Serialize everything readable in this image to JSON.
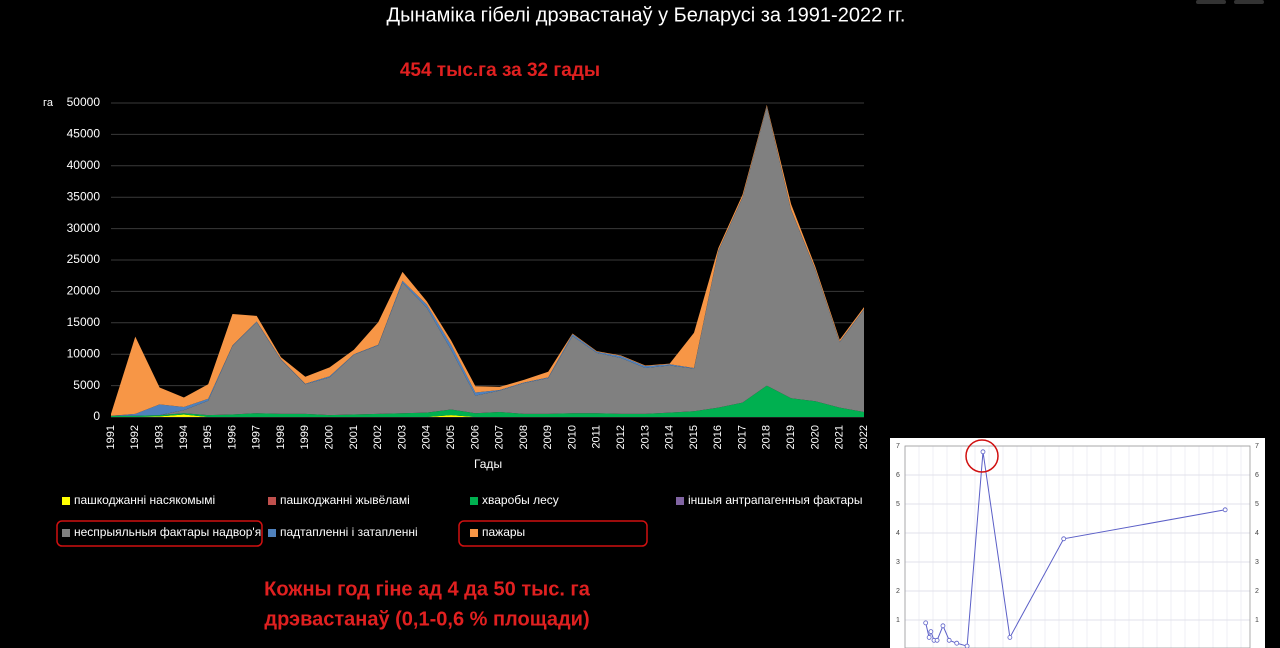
{
  "chart_data": [
    {
      "type": "stacked-area",
      "title": "Дынаміка гібелі дрэвастанаў у Беларусі за 1991-2022 гг.",
      "annotation_top": "454 тыс.га за 32 гады",
      "annotation_bottom": [
        "Кожны год гіне ад 4 да 50 тыс. га",
        "дрэвастанаў (0,1-0,6 % площади)"
      ],
      "y_label": "га",
      "x_label": "Гады",
      "categories": [
        "1991",
        "1992",
        "1993",
        "1994",
        "1995",
        "1996",
        "1997",
        "1998",
        "1999",
        "2000",
        "2001",
        "2002",
        "2003",
        "2004",
        "2005",
        "2006",
        "2007",
        "2008",
        "2009",
        "2010",
        "2011",
        "2012",
        "2013",
        "2014",
        "2015",
        "2016",
        "2017",
        "2018",
        "2019",
        "2020",
        "2021",
        "2022"
      ],
      "ylim": [
        0,
        50000
      ],
      "yticks": [
        0,
        5000,
        10000,
        15000,
        20000,
        25000,
        30000,
        35000,
        40000,
        45000,
        50000
      ],
      "grid": true,
      "series": [
        {
          "name": "пашкоджанні насякомымі",
          "color": "#ffff00",
          "values": [
            0,
            0,
            100,
            400,
            0,
            0,
            0,
            0,
            0,
            0,
            0,
            0,
            0,
            0,
            300,
            0,
            0,
            0,
            0,
            0,
            0,
            0,
            0,
            0,
            0,
            0,
            0,
            0,
            0,
            0,
            0,
            0
          ]
        },
        {
          "name": "пашкоджанні жывёламі",
          "color": "#c0504d",
          "values": [
            0,
            0,
            0,
            0,
            0,
            0,
            0,
            0,
            0,
            0,
            0,
            0,
            0,
            0,
            0,
            0,
            0,
            0,
            0,
            0,
            0,
            0,
            0,
            0,
            0,
            0,
            0,
            0,
            0,
            0,
            0,
            0
          ]
        },
        {
          "name": "хваробы лесу",
          "color": "#00b050",
          "values": [
            200,
            200,
            200,
            200,
            300,
            400,
            600,
            500,
            500,
            300,
            400,
            500,
            600,
            700,
            900,
            600,
            800,
            500,
            500,
            600,
            600,
            500,
            500,
            700,
            900,
            1500,
            2300,
            5000,
            3000,
            2500,
            1500,
            800
          ]
        },
        {
          "name": "іншыя антрапагенныя фактары",
          "color": "#8064a2",
          "values": [
            0,
            0,
            0,
            0,
            0,
            0,
            0,
            0,
            0,
            0,
            0,
            0,
            0,
            0,
            0,
            0,
            0,
            0,
            0,
            0,
            0,
            0,
            0,
            0,
            0,
            0,
            0,
            0,
            0,
            0,
            0,
            0
          ]
        },
        {
          "name": "неспрыяльныя фактары надвор'я",
          "color": "#808080",
          "values": [
            0,
            0,
            0,
            500,
            2300,
            10900,
            14500,
            8600,
            4700,
            6000,
            9500,
            10900,
            20800,
            16700,
            9500,
            2800,
            3400,
            4900,
            5700,
            12300,
            9600,
            8900,
            7300,
            7500,
            6800,
            24900,
            32600,
            44400,
            29900,
            20900,
            10400,
            16300
          ]
        },
        {
          "name": "падтапленні і затапленні",
          "color": "#4f81bd",
          "values": [
            0,
            300,
            1700,
            500,
            300,
            100,
            100,
            100,
            100,
            200,
            100,
            100,
            300,
            500,
            800,
            500,
            100,
            100,
            100,
            300,
            200,
            300,
            300,
            200,
            100,
            100,
            100,
            100,
            100,
            100,
            100,
            100
          ]
        },
        {
          "name": "пажары",
          "color": "#f79646",
          "values": [
            300,
            12300,
            2700,
            1500,
            2300,
            5000,
            900,
            300,
            1100,
            1400,
            700,
            3600,
            1400,
            500,
            700,
            1000,
            500,
            400,
            900,
            100,
            100,
            100,
            100,
            100,
            5600,
            400,
            400,
            200,
            900,
            400,
            300,
            300
          ]
        }
      ]
    },
    {
      "type": "line",
      "color": "#5b5fc7",
      "x": [
        6,
        7,
        7.5,
        8.4,
        9.3,
        11,
        12.8,
        15,
        18,
        22.6,
        30.4,
        46,
        92.8
      ],
      "values": [
        0.9,
        0.4,
        0.6,
        0.3,
        0.3,
        0.8,
        0.3,
        0.2,
        0.1,
        6.8,
        0.4,
        3.8,
        4.8
      ],
      "xlim": [
        0,
        100
      ],
      "ylim": [
        0,
        7
      ],
      "yticks": [
        1,
        2,
        3,
        4,
        5,
        6,
        7
      ]
    }
  ]
}
